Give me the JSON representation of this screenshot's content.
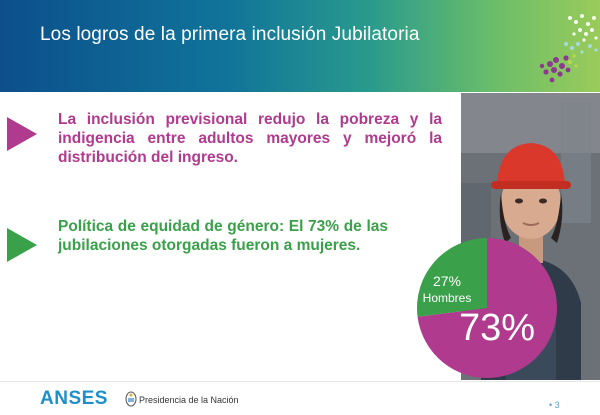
{
  "header": {
    "title": "Los logros de la primera inclusión Jubilatoria"
  },
  "bullets": [
    {
      "text": "La inclusión previsional redujo la pobreza y la indigencia entre adultos mayores y mejoró la distribución del ingreso.",
      "color": "#b03a8e"
    },
    {
      "text": "Política de equidad de género: El 73% de las jubilaciones otorgadas fueron a mujeres.",
      "color": "#3aa04a"
    }
  ],
  "chart_data": {
    "type": "pie",
    "slices": [
      {
        "label": "Hombres",
        "value": 27,
        "display": "27%",
        "color": "#3aa04a"
      },
      {
        "label": "",
        "value": 73,
        "display": "73%",
        "color": "#b03a8e"
      }
    ]
  },
  "footer": {
    "logo": "ANSES",
    "presidencia": "Presidencia de la Nación",
    "page": "• 3"
  }
}
